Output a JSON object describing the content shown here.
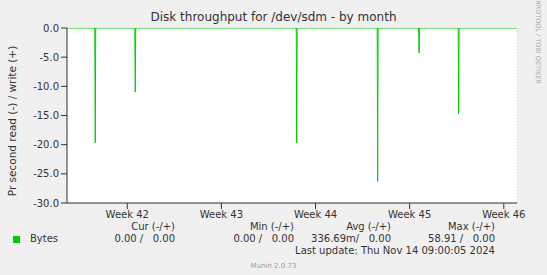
{
  "chart_data": {
    "type": "line",
    "title": "Disk throughput for /dev/sdm - by month",
    "y_label": "Pr second read (-) / write (+)",
    "watermark": "RRDTOOL / TOBI OETIKER",
    "x": [
      41.36,
      41.655,
      41.66,
      41.665,
      42.08,
      42.085,
      42.09,
      43.795,
      43.8,
      43.805,
      44.655,
      44.66,
      44.665,
      45.095,
      45.1,
      45.105,
      45.515,
      45.52,
      45.525,
      46.14
    ],
    "series": [
      {
        "name": "Bytes",
        "color": "#00cc00",
        "values": [
          0,
          0,
          -19.7,
          0,
          0,
          -11.0,
          0,
          0,
          -19.7,
          0,
          0,
          -26.3,
          0,
          0,
          -4.3,
          0,
          0,
          -14.7,
          0,
          0
        ]
      }
    ],
    "xlim": [
      41.36,
      46.14
    ],
    "xticks": [
      {
        "value": 42,
        "label": "Week 42"
      },
      {
        "value": 43,
        "label": "Week 43"
      },
      {
        "value": 44,
        "label": "Week 44"
      },
      {
        "value": 45,
        "label": "Week 45"
      },
      {
        "value": 46,
        "label": "Week 46"
      }
    ],
    "ylim": [
      -30,
      0
    ],
    "yticks": [
      {
        "value": -30,
        "label": "-30.0"
      },
      {
        "value": -25,
        "label": "-25.0"
      },
      {
        "value": -20,
        "label": "-20.0"
      },
      {
        "value": -15,
        "label": "-15.0"
      },
      {
        "value": -10,
        "label": "-10.0"
      },
      {
        "value": -5,
        "label": "-5.0"
      },
      {
        "value": 0,
        "label": "0.0"
      }
    ],
    "grid": true,
    "stats": {
      "columns": [
        "Cur (-/+)",
        "Min (-/+)",
        "Avg (-/+)",
        "Max (-/+)"
      ],
      "values": [
        "0.00 /   0.00",
        "0.00 /   0.00",
        "336.69m/   0.00",
        "58.91 /   0.00"
      ]
    },
    "footer": "Last update: Thu Nov 14 09:00:05 2024",
    "credit": "Munin 2.0.73"
  }
}
